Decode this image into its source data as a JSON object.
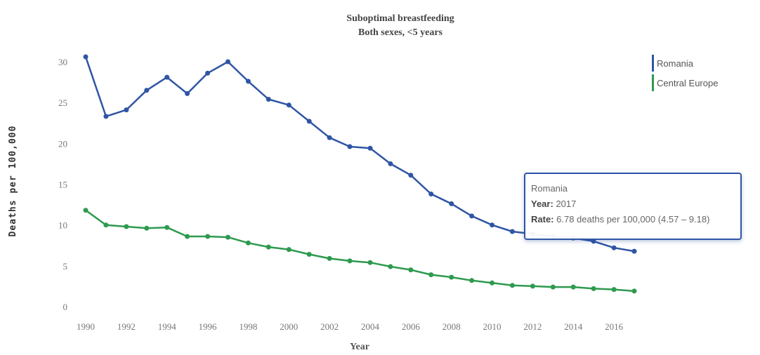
{
  "chart_data": {
    "type": "line",
    "title": "Suboptimal breastfeeding",
    "subtitle": "Both sexes, <5 years",
    "xlabel": "Year",
    "ylabel": "Deaths per 100,000",
    "xlim": [
      1990,
      2017
    ],
    "ylim": [
      0,
      32
    ],
    "x_ticks": [
      "1990",
      "1992",
      "1994",
      "1996",
      "1998",
      "2000",
      "2002",
      "2004",
      "2006",
      "2008",
      "2010",
      "2012",
      "2014",
      "2016"
    ],
    "y_ticks": [
      "0",
      "5",
      "10",
      "15",
      "20",
      "25",
      "30"
    ],
    "grid": false,
    "legend_position": "top-right",
    "x": [
      1990,
      1991,
      1992,
      1993,
      1994,
      1995,
      1996,
      1997,
      1998,
      1999,
      2000,
      2001,
      2002,
      2003,
      2004,
      2005,
      2006,
      2007,
      2008,
      2009,
      2010,
      2011,
      2012,
      2013,
      2014,
      2015,
      2016,
      2017
    ],
    "series": [
      {
        "name": "Romania",
        "color": "#2f55a4",
        "values": [
          30.6,
          23.3,
          24.1,
          26.5,
          28.1,
          26.1,
          28.6,
          30.0,
          27.6,
          25.4,
          24.7,
          22.7,
          20.7,
          19.6,
          19.4,
          17.5,
          16.1,
          13.8,
          12.6,
          11.1,
          10.0,
          9.2,
          8.9,
          8.6,
          8.4,
          8.0,
          7.2,
          6.78
        ]
      },
      {
        "name": "Central Europe",
        "color": "#2e9a4f",
        "values": [
          11.8,
          10.0,
          9.8,
          9.6,
          9.7,
          8.6,
          8.6,
          8.5,
          7.8,
          7.3,
          7.0,
          6.4,
          5.9,
          5.6,
          5.4,
          4.9,
          4.5,
          3.9,
          3.6,
          3.2,
          2.9,
          2.6,
          2.5,
          2.4,
          2.4,
          2.2,
          2.1,
          1.9
        ]
      }
    ]
  },
  "tooltip": {
    "series": "Romania",
    "year_label": "Year:",
    "year_value": "2017",
    "rate_label": "Rate:",
    "rate_value": "6.78 deaths per 100,000 (4.57 – 9.18)"
  }
}
